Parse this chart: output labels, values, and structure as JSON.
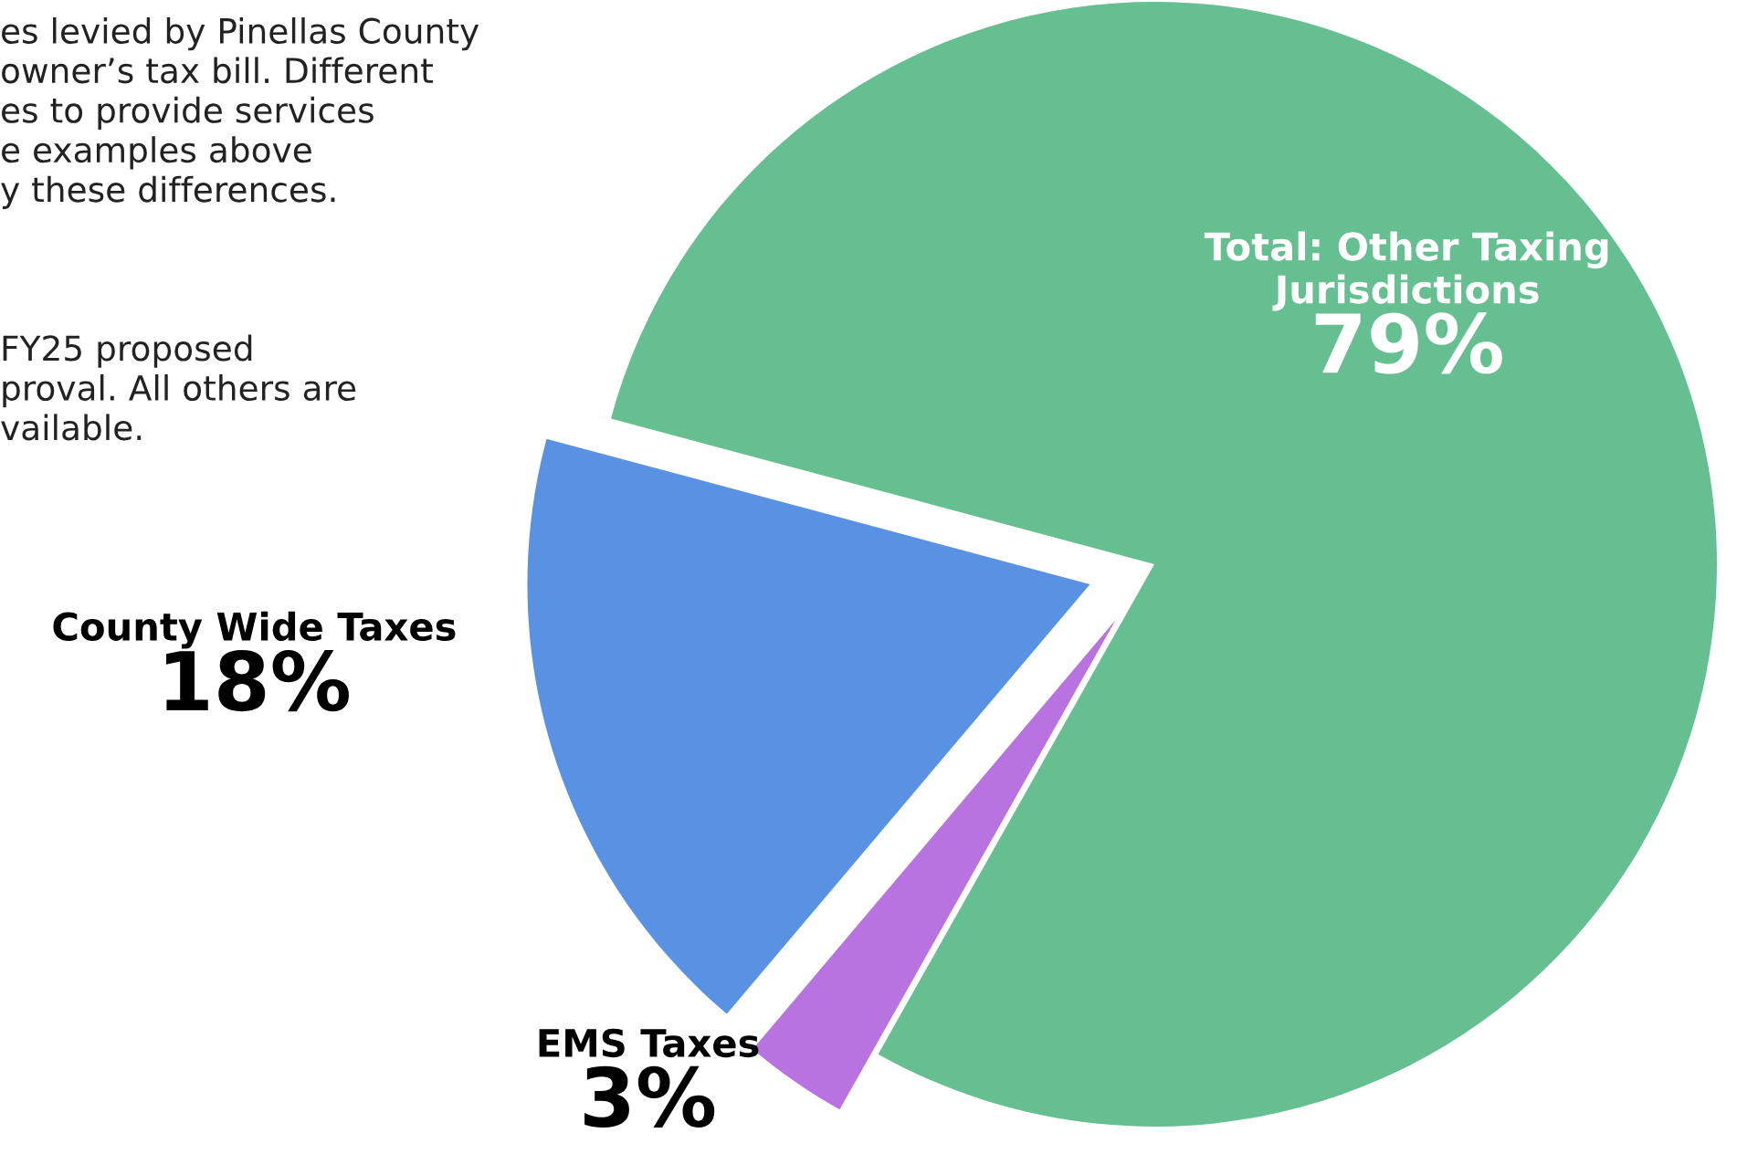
{
  "chart_data": {
    "type": "pie",
    "categories": [
      "Total: Other Taxing Jurisdictions",
      "EMS Taxes",
      "County Wide Taxes"
    ],
    "values": [
      79,
      3,
      18
    ],
    "value_labels": [
      "79%",
      "3%",
      "18%"
    ],
    "colors": [
      "#66bf91",
      "#b873e0",
      "#5a92e3"
    ],
    "annotations": [
      "es levied by Pinellas County\nowner’s tax bill. Different\nes to provide services\ne examples above\ny these differences.",
      "FY25 proposed\nproval. All others are\nvailable."
    ]
  }
}
